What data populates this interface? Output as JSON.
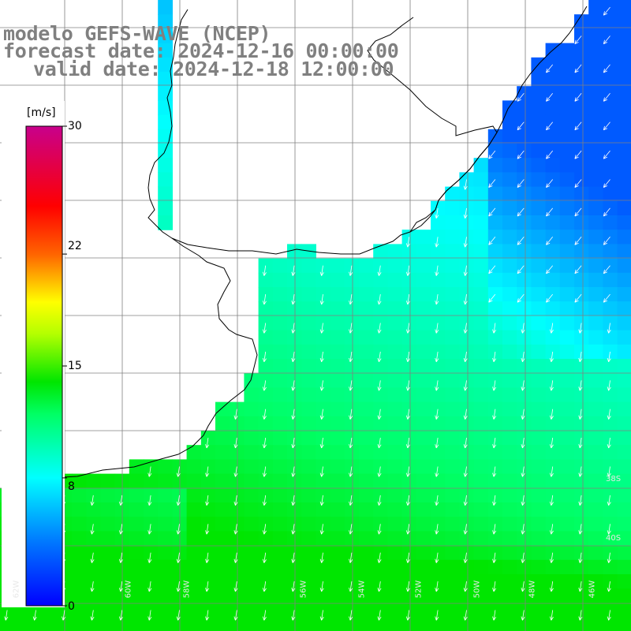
{
  "title": {
    "line1": "modelo GEFS-WAVE (NCEP)",
    "line2": "forecast date: 2024-12-16 00:00:00",
    "line3": "valid date: 2024-12-18 12:00:00"
  },
  "colorbar": {
    "unit": "[m/s]",
    "min": 0,
    "max": 30,
    "tick_labels": [
      "30",
      "22",
      "15",
      "8",
      "0"
    ],
    "tick_values": [
      30,
      22,
      15,
      8,
      0
    ],
    "stops": [
      {
        "v": 0,
        "color": "#0000ff"
      },
      {
        "v": 4,
        "color": "#0078ff"
      },
      {
        "v": 8,
        "color": "#00ffff"
      },
      {
        "v": 12,
        "color": "#00ff64"
      },
      {
        "v": 14,
        "color": "#00e600"
      },
      {
        "v": 17,
        "color": "#b4ff00"
      },
      {
        "v": 19,
        "color": "#ffff00"
      },
      {
        "v": 22,
        "color": "#ff6400"
      },
      {
        "v": 25,
        "color": "#ff0000"
      },
      {
        "v": 30,
        "color": "#c8008c"
      }
    ]
  },
  "map": {
    "lat_labels": [
      "40S",
      "38S"
    ],
    "lon_labels": [
      "62W",
      "60W",
      "58W",
      "56W",
      "54W",
      "52W",
      "50W",
      "48W",
      "46W"
    ],
    "land_color": "#ffffff",
    "coast_color": "#000000",
    "grid_color": "#808080",
    "arrow_color": "#ffffff"
  }
}
